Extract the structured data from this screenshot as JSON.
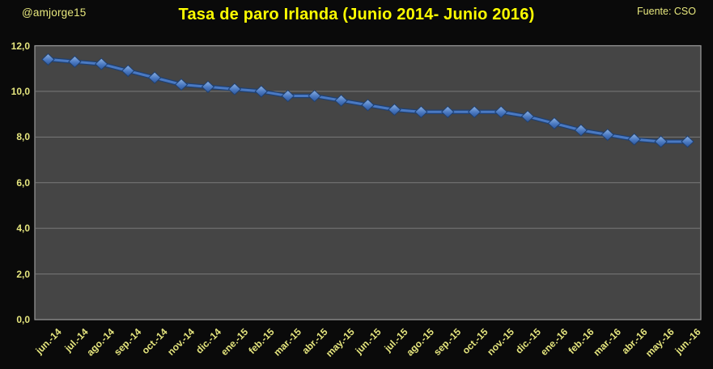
{
  "header": {
    "handle": "@amjorge15",
    "source": "Fuente: CSO"
  },
  "chart_data": {
    "type": "line",
    "title": "Tasa de paro Irlanda (Junio 2014- Junio 2016)",
    "categories": [
      "jun.-14",
      "jul.-14",
      "ago.-14",
      "sep.-14",
      "oct.-14",
      "nov.-14",
      "dic.-14",
      "ene.-15",
      "feb.-15",
      "mar.-15",
      "abr.-15",
      "may.-15",
      "jun.-15",
      "jul.-15",
      "ago.-15",
      "sep.-15",
      "oct.-15",
      "nov.-15",
      "dic.-15",
      "ene.-16",
      "feb.-16",
      "mar.-16",
      "abr.-16",
      "may.-16",
      "jun.-16"
    ],
    "values": [
      11.4,
      11.3,
      11.2,
      10.9,
      10.6,
      10.3,
      10.2,
      10.1,
      10.0,
      9.8,
      9.8,
      9.6,
      9.4,
      9.2,
      9.1,
      9.1,
      9.1,
      9.1,
      8.9,
      8.6,
      8.3,
      8.1,
      7.9,
      7.8,
      7.8
    ],
    "xlabel": "",
    "ylabel": "",
    "ylim": [
      0,
      12
    ],
    "y_tick_step": 2,
    "y_tick_labels": [
      "0,0",
      "2,0",
      "4,0",
      "6,0",
      "8,0",
      "10,0",
      "12,0"
    ],
    "x_tick_rotation": -45,
    "grid": true,
    "legend": false,
    "marker": "diamond",
    "colors": {
      "background": "#0a0a0a",
      "title_text": "#ffff00",
      "axis_text": "#e6e67e",
      "plot_bg": "#454545",
      "gridline": "#7a7a7a",
      "plot_border": "#9b9b9b",
      "line": "#4a79c2",
      "line_edge": "#1f4071",
      "marker_light": "#8fb2e0",
      "marker_dark": "#2e5697"
    }
  }
}
